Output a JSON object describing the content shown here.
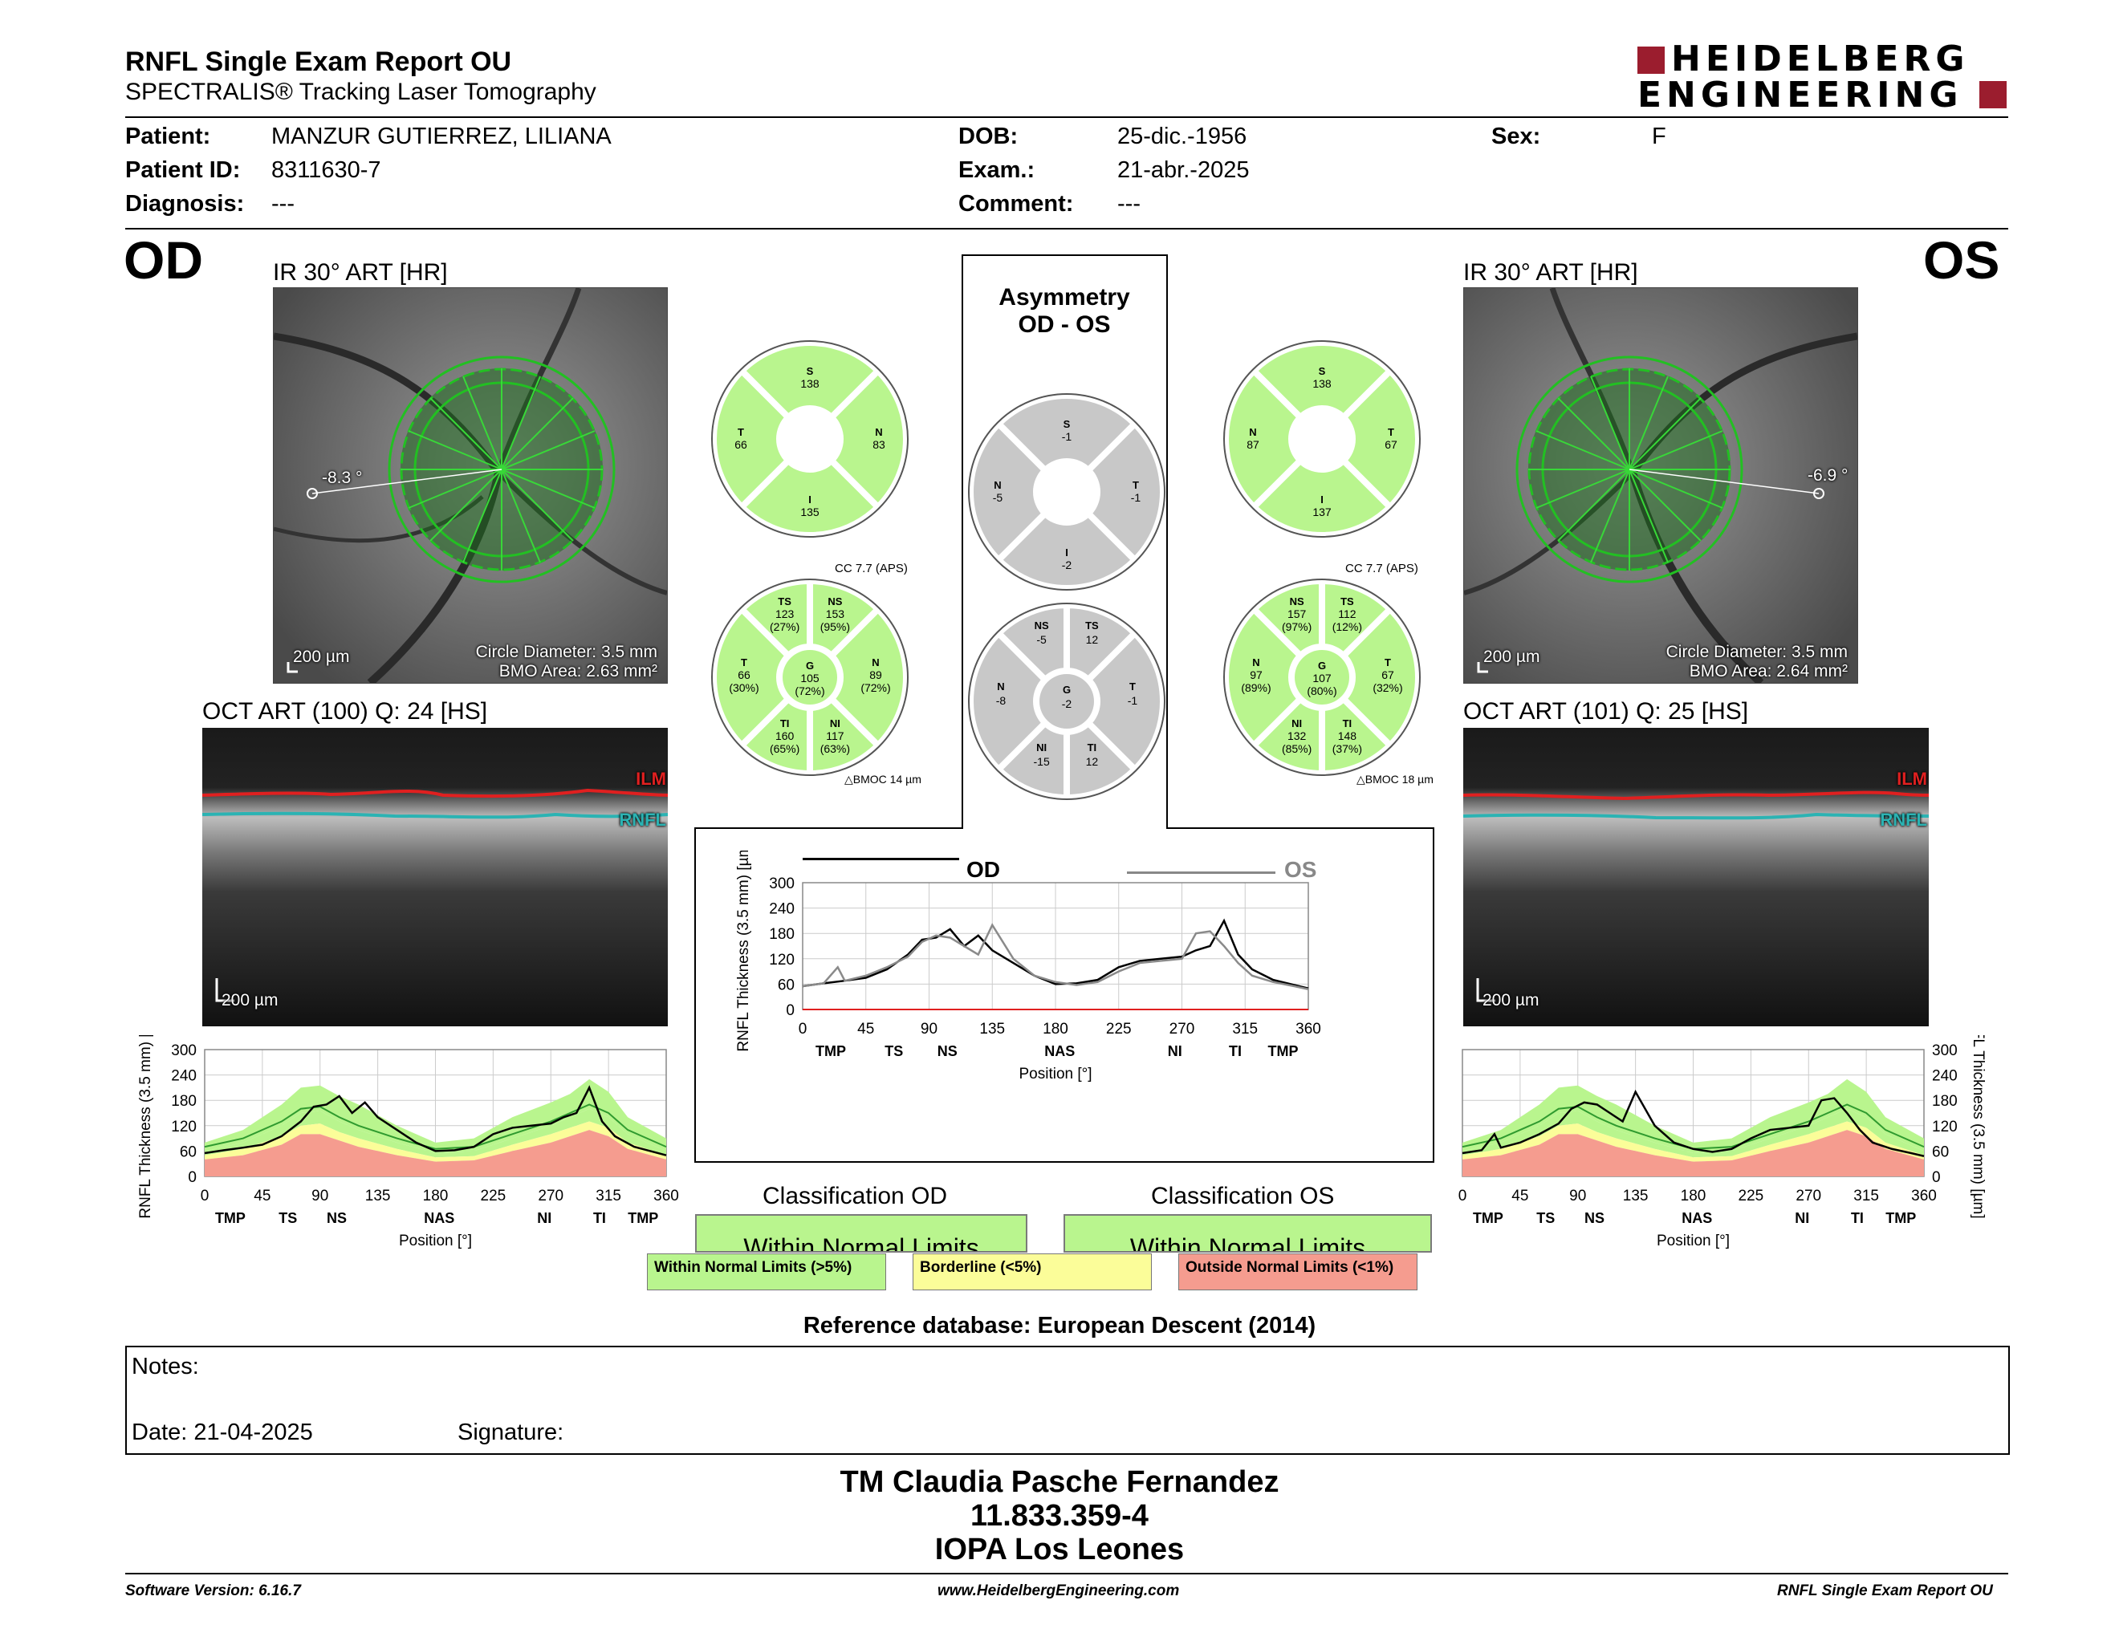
{
  "header": {
    "title": "RNFL Single Exam Report OU",
    "subtitle": "SPECTRALIS® Tracking Laser Tomography",
    "logo_line1": "HEIDELBERG",
    "logo_line2": "ENGINEERING"
  },
  "patient": {
    "patient_label": "Patient:",
    "patient_value": "MANZUR GUTIERREZ, LILIANA",
    "id_label": "Patient ID:",
    "id_value": "8311630-7",
    "diagnosis_label": "Diagnosis:",
    "diagnosis_value": "---",
    "dob_label": "DOB:",
    "dob_value": "25-dic.-1956",
    "exam_label": "Exam.:",
    "exam_value": "21-abr.-2025",
    "comment_label": "Comment:",
    "comment_value": "---",
    "sex_label": "Sex:",
    "sex_value": "F"
  },
  "od": {
    "eye": "OD",
    "ir_title": "IR 30° ART [HR]",
    "angle": "-8.3 °",
    "scale": "200 µm",
    "circle_diameter": "Circle Diameter: 3.5 mm",
    "bmo_area": "BMO Area: 2.63 mm²",
    "oct_title": "OCT ART (100) Q: 24 [HS]",
    "oct_scale": "200 µm",
    "ilm": "ILM",
    "rnfl": "RNFL",
    "quadrants": {
      "S": "138",
      "T": "66",
      "N": "83",
      "I": "135"
    },
    "sectors": {
      "TS": [
        "123",
        "(27%)"
      ],
      "NS": [
        "153",
        "(95%)"
      ],
      "T": [
        "66",
        "(30%)"
      ],
      "G": [
        "105",
        "(72%)"
      ],
      "N": [
        "89",
        "(72%)"
      ],
      "TI": [
        "160",
        "(65%)"
      ],
      "NI": [
        "117",
        "(63%)"
      ]
    },
    "cc": "CC 7.7 (APS)",
    "bmoc": "BMOC 14 µm",
    "classification_label": "Classification OD",
    "classification_value": "Within Normal Limits"
  },
  "os": {
    "eye": "OS",
    "ir_title": "IR 30° ART [HR]",
    "angle": "-6.9 °",
    "scale": "200 µm",
    "circle_diameter": "Circle Diameter: 3.5 mm",
    "bmo_area": "BMO Area: 2.64 mm²",
    "oct_title": "OCT ART (101) Q: 25 [HS]",
    "oct_scale": "200 µm",
    "ilm": "ILM",
    "rnfl": "RNFL",
    "quadrants": {
      "S": "138",
      "N": "87",
      "T": "67",
      "I": "137"
    },
    "sectors": {
      "NS": [
        "157",
        "(97%)"
      ],
      "TS": [
        "112",
        "(12%)"
      ],
      "N": [
        "97",
        "(89%)"
      ],
      "G": [
        "107",
        "(80%)"
      ],
      "T": [
        "67",
        "(32%)"
      ],
      "NI": [
        "132",
        "(85%)"
      ],
      "TI": [
        "148",
        "(37%)"
      ]
    },
    "cc": "CC 7.7 (APS)",
    "bmoc": "BMOC 18 µm",
    "classification_label": "Classification OS",
    "classification_value": "Within Normal Limits"
  },
  "asymmetry": {
    "title1": "Asymmetry",
    "title2": "OD - OS",
    "quadrants": {
      "S": "-1",
      "N": "-5",
      "T": "-1",
      "I": "-2"
    },
    "sectors": {
      "NS": "-5",
      "TS": "12",
      "N": "-8",
      "G": "-2",
      "T": "-1",
      "NI": "-15",
      "TI": "12"
    },
    "legend_od": "OD",
    "legend_os": "OS"
  },
  "chart_data": [
    {
      "type": "line",
      "ylabel": "RNFL Thickness (3.5 mm) [µm]",
      "xlabel": "Position [°]",
      "ylim": [
        0,
        300
      ],
      "xlim": [
        0,
        360
      ],
      "yticks": [
        0,
        60,
        120,
        180,
        240,
        300
      ],
      "xticks": [
        0,
        45,
        90,
        135,
        180,
        225,
        270,
        315,
        360
      ],
      "sector_labels": [
        "TMP",
        "TS",
        "NS",
        "NAS",
        "NI",
        "TI",
        "TMP"
      ],
      "sector_positions": [
        20,
        65,
        103,
        183,
        265,
        308,
        342
      ],
      "series": [
        {
          "name": "OD",
          "x": [
            0,
            15,
            30,
            45,
            60,
            75,
            85,
            95,
            105,
            115,
            125,
            135,
            150,
            165,
            180,
            195,
            210,
            225,
            240,
            255,
            270,
            280,
            290,
            300,
            310,
            320,
            335,
            350,
            360
          ],
          "values": [
            55,
            62,
            68,
            75,
            95,
            130,
            165,
            170,
            190,
            150,
            175,
            140,
            110,
            80,
            60,
            62,
            70,
            100,
            115,
            120,
            125,
            140,
            150,
            210,
            130,
            95,
            70,
            58,
            50
          ]
        },
        {
          "name": "OS",
          "x": [
            0,
            15,
            25,
            30,
            45,
            60,
            75,
            85,
            95,
            105,
            115,
            125,
            135,
            150,
            165,
            180,
            195,
            210,
            225,
            240,
            255,
            270,
            280,
            290,
            300,
            310,
            320,
            335,
            350,
            360
          ],
          "values": [
            55,
            62,
            100,
            68,
            80,
            100,
            125,
            160,
            175,
            170,
            150,
            130,
            200,
            120,
            80,
            65,
            58,
            65,
            90,
            110,
            115,
            120,
            180,
            185,
            150,
            110,
            80,
            65,
            55,
            48
          ]
        }
      ]
    },
    {
      "type": "area",
      "ylabel": "RNFL Thickness (3.5 mm) [µm]",
      "xlabel": "Position [°]",
      "ylim": [
        0,
        300
      ],
      "xlim": [
        0,
        360
      ],
      "sector_labels": [
        "TMP",
        "TS",
        "NS",
        "NAS",
        "NI",
        "TI",
        "TMP"
      ],
      "series": [
        {
          "name": "OD",
          "x": [
            0,
            15,
            30,
            45,
            60,
            75,
            85,
            95,
            105,
            115,
            125,
            135,
            150,
            165,
            180,
            195,
            210,
            225,
            240,
            255,
            270,
            280,
            290,
            300,
            310,
            320,
            335,
            350,
            360
          ],
          "values": [
            55,
            62,
            68,
            75,
            95,
            130,
            165,
            170,
            190,
            150,
            175,
            140,
            110,
            80,
            60,
            62,
            70,
            100,
            115,
            120,
            125,
            140,
            150,
            210,
            130,
            95,
            70,
            58,
            50
          ]
        }
      ]
    },
    {
      "type": "area",
      "ylabel": "RNFL Thickness (3.5 mm) [µm]",
      "xlabel": "Position [°]",
      "ylim": [
        0,
        300
      ],
      "xlim": [
        0,
        360
      ],
      "sector_labels": [
        "TMP",
        "TS",
        "NS",
        "NAS",
        "NI",
        "TI",
        "TMP"
      ],
      "series": [
        {
          "name": "OS",
          "x": [
            0,
            15,
            25,
            30,
            45,
            60,
            75,
            85,
            95,
            105,
            115,
            125,
            135,
            150,
            165,
            180,
            195,
            210,
            225,
            240,
            255,
            270,
            280,
            290,
            300,
            310,
            320,
            335,
            350,
            360
          ],
          "values": [
            55,
            62,
            100,
            68,
            80,
            100,
            125,
            160,
            175,
            170,
            150,
            130,
            200,
            120,
            80,
            65,
            58,
            65,
            90,
            110,
            115,
            120,
            180,
            185,
            150,
            110,
            80,
            65,
            55,
            48
          ]
        }
      ]
    }
  ],
  "legend": {
    "wnl": "Within Normal Limits (>5%)",
    "border": "Borderline (<5%)",
    "onl": "Outside Normal Limits (<1%)"
  },
  "reference": "Reference database: European Descent (2014)",
  "notes": {
    "notes_label": "Notes:",
    "date_label": "Date: 21-04-2025",
    "signature_label": "Signature:"
  },
  "signature_block": {
    "line1": "TM Claudia Pasche Fernandez",
    "line2": "11.833.359-4",
    "line3": "IOPA Los Leones"
  },
  "footer": {
    "left": "Software Version: 6.16.7",
    "center": "www.HeidelbergEngineering.com",
    "right": "RNFL Single Exam Report OU"
  },
  "colors": {
    "green": "#b9f58e",
    "yellow": "#fbfd99",
    "red": "#f59c8f",
    "grey": "#c8c8c8",
    "logo": "#9b1d2e"
  }
}
